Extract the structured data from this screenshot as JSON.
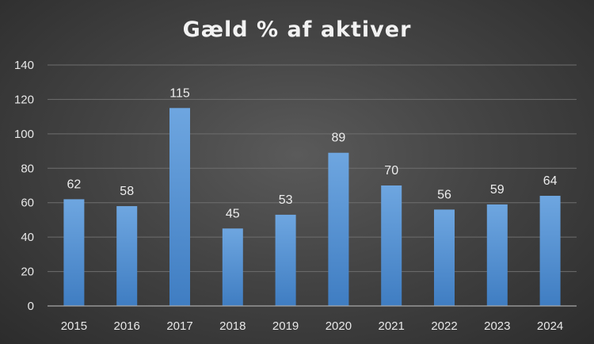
{
  "chart_data": {
    "type": "bar",
    "title": "Gæld  % af aktiver",
    "xlabel": "",
    "ylabel": "",
    "categories": [
      "2015",
      "2016",
      "2017",
      "2018",
      "2019",
      "2020",
      "2021",
      "2022",
      "2023",
      "2024"
    ],
    "values": [
      62,
      58,
      115,
      45,
      53,
      89,
      70,
      56,
      59,
      64
    ],
    "ylim": [
      0,
      140
    ],
    "yticks": [
      0,
      20,
      40,
      60,
      80,
      100,
      120,
      140
    ],
    "grid": true,
    "legend": "none",
    "data_labels": true,
    "colors": {
      "bar_top": "#6ea6e0",
      "bar_bottom": "#3f7dc2",
      "background": "#444444",
      "text": "#e8e8e8"
    }
  }
}
